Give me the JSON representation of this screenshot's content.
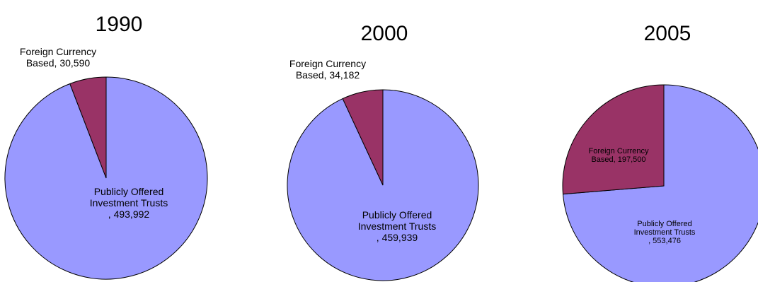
{
  "chart_data": [
    {
      "type": "pie",
      "title": "1990",
      "series": [
        {
          "name": "Publicly Offered Investment Trusts",
          "value": 493992,
          "label_lines": [
            "Publicly Offered",
            "Investment Trusts",
            ", 493,992"
          ]
        },
        {
          "name": "Foreign Currency Based",
          "value": 30590,
          "label_lines": [
            "Foreign Currency",
            "Based, 30,590"
          ]
        }
      ]
    },
    {
      "type": "pie",
      "title": "2000",
      "series": [
        {
          "name": "Publicly Offered Investment Trusts",
          "value": 459939,
          "label_lines": [
            "Publicly Offered",
            "Investment Trusts",
            ", 459,939"
          ]
        },
        {
          "name": "Foreign Currency Based",
          "value": 34182,
          "label_lines": [
            "Foreign Currency",
            "Based, 34,182"
          ]
        }
      ]
    },
    {
      "type": "pie",
      "title": "2005",
      "series": [
        {
          "name": "Publicly Offered Investment Trusts",
          "value": 553476,
          "label_lines": [
            "Publicly Offered",
            "Investment Trusts",
            ", 553,476"
          ]
        },
        {
          "name": "Foreign Currency Based",
          "value": 197500,
          "label_lines": [
            "Foreign Currency",
            "Based, 197,500"
          ]
        }
      ]
    }
  ],
  "colors": {
    "publicly_offered": "#9999FF",
    "foreign_currency": "#993366",
    "outline": "#000000"
  }
}
